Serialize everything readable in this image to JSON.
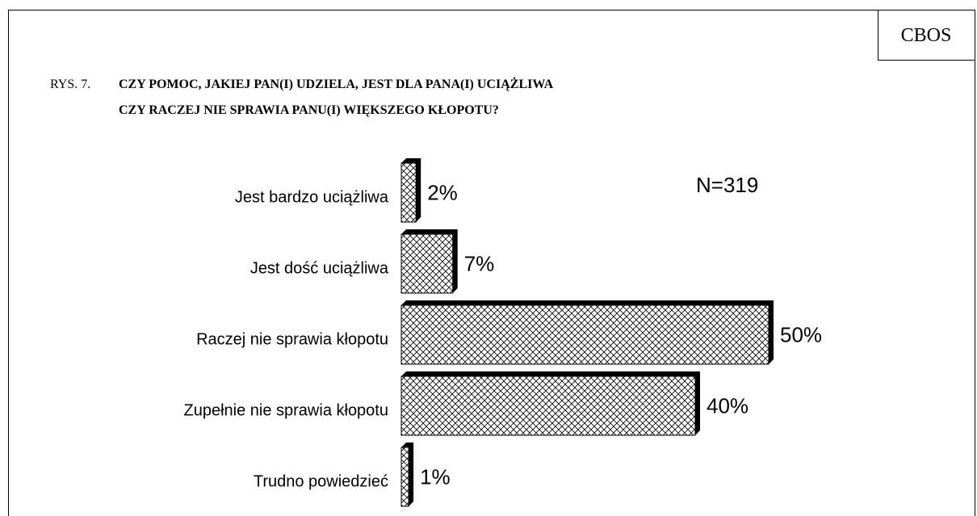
{
  "chart_data": {
    "type": "bar",
    "orientation": "horizontal",
    "source": "CBOS",
    "figure_label": "RYS. 7.",
    "title_lines": [
      "CZY POMOC, JAKIEJ PAN(I) UDZIELA, JEST DLA PANA(I) UCIĄŻLIWA",
      "CZY RACZEJ NIE SPRAWIA PANU(I) WIĘKSZEGO KŁOPOTU?"
    ],
    "annotation": "N=319",
    "categories": [
      "Jest bardzo uciążliwa",
      "Jest dość uciążliwa",
      "Raczej nie sprawia kłopotu",
      "Zupełnie nie sprawia kłopotu",
      "Trudno powiedzieć"
    ],
    "values": [
      2,
      7,
      50,
      40,
      1
    ],
    "value_labels": [
      "2%",
      "7%",
      "50%",
      "40%",
      "1%"
    ],
    "color": "#000000"
  }
}
